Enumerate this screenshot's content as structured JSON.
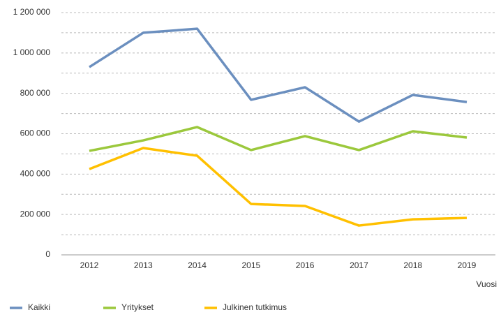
{
  "chart_data": {
    "type": "line",
    "x_label": "Vuosi",
    "categories": [
      "2012",
      "2013",
      "2014",
      "2015",
      "2016",
      "2017",
      "2018",
      "2019"
    ],
    "series": [
      {
        "name": "Kaikki",
        "color": "#6b8fbf",
        "values": [
          930000,
          1100000,
          1120000,
          768000,
          830000,
          660000,
          792000,
          757000
        ]
      },
      {
        "name": "Yritykset",
        "color": "#9bc83c",
        "values": [
          515000,
          567000,
          633000,
          519000,
          588000,
          519000,
          612000,
          581000
        ]
      },
      {
        "name": "Julkinen tutkimus",
        "color": "#ffc000",
        "values": [
          425000,
          529000,
          491000,
          252000,
          242000,
          145000,
          176000,
          183000
        ]
      }
    ],
    "ylim": [
      0,
      1200000
    ],
    "yticks": [
      0,
      {
        "value": 200000,
        "label": "200 000"
      },
      {
        "value": 400000,
        "label": "400 000"
      },
      {
        "value": 600000,
        "label": "600 000"
      },
      {
        "value": 800000,
        "label": "800 000"
      },
      {
        "value": 1000000,
        "label": "1 000 000"
      },
      {
        "value": 1200000,
        "label": "1 200 000"
      }
    ],
    "minor_grid": [
      100000,
      300000,
      500000,
      700000,
      900000,
      1100000
    ],
    "grid": true,
    "legend": "bottom"
  }
}
